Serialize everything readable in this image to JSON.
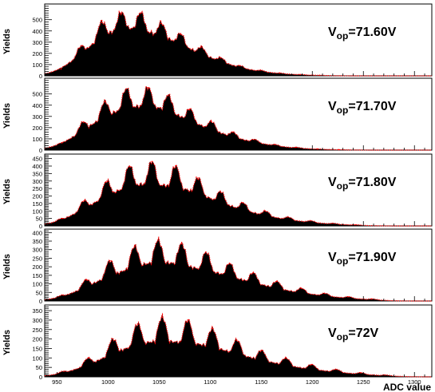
{
  "chart_data": {
    "type": "area",
    "x_range": [
      938,
      1317
    ],
    "x_ticks": [
      950,
      1000,
      1050,
      1100,
      1150,
      1200,
      1250,
      1300
    ],
    "xlabel": "ADC value",
    "fill_color": "#000000",
    "curve_color": "#ff0000",
    "panels": [
      {
        "ylabel": "Yields",
        "ylim": [
          0,
          640
        ],
        "y_ticks": [
          0,
          100,
          200,
          300,
          400,
          500
        ],
        "annotation": {
          "prefix": "V",
          "sub": "op",
          "suffix": "=71.60V"
        },
        "peaks": [
          {
            "x": 954,
            "h": 60
          },
          {
            "x": 974,
            "h": 265
          },
          {
            "x": 994,
            "h": 475
          },
          {
            "x": 1013,
            "h": 555
          },
          {
            "x": 1032,
            "h": 555
          },
          {
            "x": 1052,
            "h": 465
          },
          {
            "x": 1071,
            "h": 370
          },
          {
            "x": 1091,
            "h": 255
          },
          {
            "x": 1110,
            "h": 160
          },
          {
            "x": 1129,
            "h": 90
          },
          {
            "x": 1149,
            "h": 50
          },
          {
            "x": 1168,
            "h": 25
          },
          {
            "x": 1188,
            "h": 12
          },
          {
            "x": 1207,
            "h": 5
          }
        ]
      },
      {
        "ylabel": "Yields",
        "ylim": [
          0,
          640
        ],
        "y_ticks": [
          0,
          100,
          200,
          300,
          400,
          500
        ],
        "annotation": {
          "prefix": "V",
          "sub": "op",
          "suffix": "=71.70V"
        },
        "peaks": [
          {
            "x": 955,
            "h": 65
          },
          {
            "x": 976,
            "h": 250
          },
          {
            "x": 997,
            "h": 430
          },
          {
            "x": 1018,
            "h": 545
          },
          {
            "x": 1039,
            "h": 555
          },
          {
            "x": 1059,
            "h": 485
          },
          {
            "x": 1080,
            "h": 365
          },
          {
            "x": 1101,
            "h": 255
          },
          {
            "x": 1122,
            "h": 160
          },
          {
            "x": 1143,
            "h": 95
          },
          {
            "x": 1163,
            "h": 50
          },
          {
            "x": 1184,
            "h": 25
          },
          {
            "x": 1205,
            "h": 10
          },
          {
            "x": 1226,
            "h": 4
          }
        ]
      },
      {
        "ylabel": "Yields",
        "ylim": [
          0,
          480
        ],
        "y_ticks": [
          0,
          50,
          100,
          150,
          200,
          250,
          300,
          350,
          400,
          450
        ],
        "annotation": {
          "prefix": "V",
          "sub": "op",
          "suffix": "=71.80V"
        },
        "peaks": [
          {
            "x": 955,
            "h": 50
          },
          {
            "x": 977,
            "h": 170
          },
          {
            "x": 999,
            "h": 300
          },
          {
            "x": 1021,
            "h": 400
          },
          {
            "x": 1043,
            "h": 430
          },
          {
            "x": 1066,
            "h": 400
          },
          {
            "x": 1088,
            "h": 320
          },
          {
            "x": 1110,
            "h": 230
          },
          {
            "x": 1132,
            "h": 155
          },
          {
            "x": 1154,
            "h": 100
          },
          {
            "x": 1176,
            "h": 60
          },
          {
            "x": 1198,
            "h": 35
          },
          {
            "x": 1220,
            "h": 18
          },
          {
            "x": 1242,
            "h": 8
          }
        ]
      },
      {
        "ylabel": "Yields",
        "ylim": [
          0,
          420
        ],
        "y_ticks": [
          0,
          50,
          100,
          150,
          200,
          250,
          300,
          350,
          400
        ],
        "annotation": {
          "prefix": "V",
          "sub": "op",
          "suffix": "=71.90V"
        },
        "peaks": [
          {
            "x": 956,
            "h": 35
          },
          {
            "x": 979,
            "h": 125
          },
          {
            "x": 1002,
            "h": 235
          },
          {
            "x": 1026,
            "h": 320
          },
          {
            "x": 1049,
            "h": 355
          },
          {
            "x": 1072,
            "h": 335
          },
          {
            "x": 1096,
            "h": 285
          },
          {
            "x": 1119,
            "h": 220
          },
          {
            "x": 1142,
            "h": 165
          },
          {
            "x": 1165,
            "h": 115
          },
          {
            "x": 1189,
            "h": 75
          },
          {
            "x": 1212,
            "h": 45
          },
          {
            "x": 1235,
            "h": 25
          },
          {
            "x": 1258,
            "h": 12
          }
        ]
      },
      {
        "ylabel": "Yields",
        "ylim": [
          0,
          380
        ],
        "y_ticks": [
          0,
          50,
          100,
          150,
          200,
          250,
          300,
          350
        ],
        "annotation": {
          "prefix": "V",
          "sub": "op",
          "suffix": "=72V"
        },
        "peaks": [
          {
            "x": 957,
            "h": 30
          },
          {
            "x": 981,
            "h": 100
          },
          {
            "x": 1005,
            "h": 200
          },
          {
            "x": 1029,
            "h": 280
          },
          {
            "x": 1053,
            "h": 315
          },
          {
            "x": 1078,
            "h": 300
          },
          {
            "x": 1102,
            "h": 255
          },
          {
            "x": 1126,
            "h": 195
          },
          {
            "x": 1150,
            "h": 140
          },
          {
            "x": 1174,
            "h": 100
          },
          {
            "x": 1199,
            "h": 65
          },
          {
            "x": 1223,
            "h": 40
          },
          {
            "x": 1247,
            "h": 22
          },
          {
            "x": 1271,
            "h": 10
          }
        ]
      }
    ]
  }
}
